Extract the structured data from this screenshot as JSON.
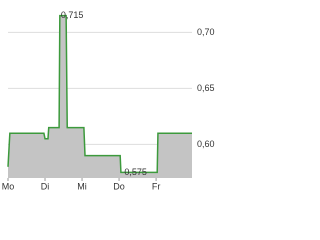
{
  "chart_data": {
    "type": "area",
    "x": [
      0,
      0.05,
      0.97,
      1.0,
      1.08,
      1.1,
      1.38,
      1.4,
      1.57,
      1.6,
      2.05,
      2.08,
      3.03,
      3.05,
      4.03,
      4.05,
      4.97
    ],
    "series": [
      {
        "color": "#3c9a3c",
        "fill": "#c4c4c4",
        "values": [
          0.58,
          0.61,
          0.61,
          0.605,
          0.605,
          0.615,
          0.615,
          0.715,
          0.715,
          0.615,
          0.615,
          0.59,
          0.59,
          0.575,
          0.575,
          0.61,
          0.61
        ],
        "value_labels": [
          null,
          null,
          null,
          null,
          null,
          null,
          null,
          "0,715",
          null,
          null,
          null,
          null,
          null,
          "0,575",
          null,
          null,
          null
        ]
      }
    ],
    "xlim": [
      0,
      4.97
    ],
    "xticks": [
      {
        "value": 0,
        "label": "Mo"
      },
      {
        "value": 1,
        "label": "Di"
      },
      {
        "value": 2,
        "label": "Mi"
      },
      {
        "value": 3,
        "label": "Do"
      },
      {
        "value": 4,
        "label": "Fr"
      }
    ],
    "ylim": [
      0.57,
      0.72
    ],
    "yticks": [
      {
        "value": 0.6,
        "label": "0,60"
      },
      {
        "value": 0.65,
        "label": "0,65"
      },
      {
        "value": 0.7,
        "label": "0,70"
      }
    ],
    "grid": true
  }
}
